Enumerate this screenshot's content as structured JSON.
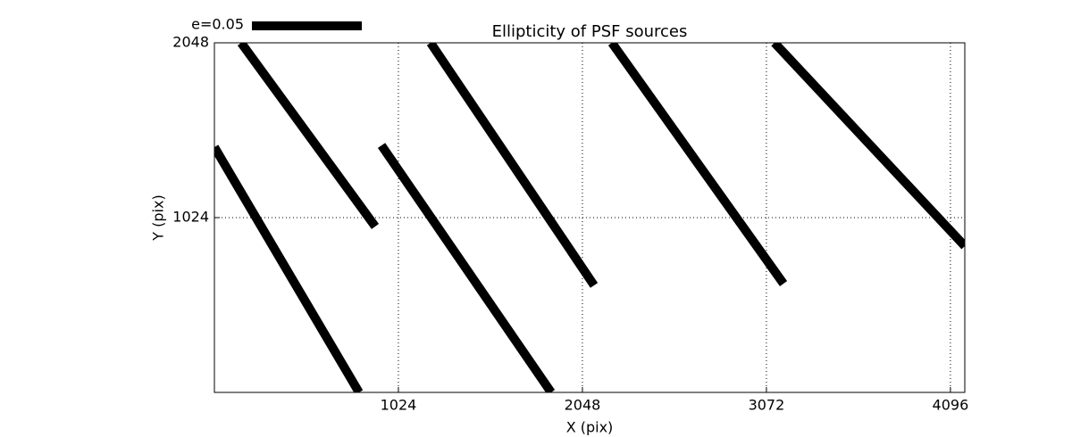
{
  "chart_data": {
    "type": "whisker",
    "title": "Ellipticity of PSF sources",
    "x_label": "X (pix)",
    "y_label": "Y (pix)",
    "legend_label": "e=0.05",
    "color": "#000000",
    "grid": true,
    "xlim": [
      0,
      4176
    ],
    "ylim": [
      0,
      2048
    ],
    "xticks": [
      1024,
      2048,
      3072,
      4096
    ],
    "yticks": [
      1024,
      2048
    ],
    "segments": [
      {
        "x": [
          0,
          805
        ],
        "y": [
          1437,
          0
        ]
      },
      {
        "x": [
          149,
          895
        ],
        "y": [
          2048,
          972
        ]
      },
      {
        "x": [
          930,
          1874
        ],
        "y": [
          1447,
          0
        ]
      },
      {
        "x": [
          1203,
          2113
        ],
        "y": [
          2048,
          627
        ]
      },
      {
        "x": [
          2212,
          3167
        ],
        "y": [
          2048,
          637
        ]
      },
      {
        "x": [
          3117,
          4176
        ],
        "y": [
          2048,
          857
        ]
      }
    ]
  }
}
